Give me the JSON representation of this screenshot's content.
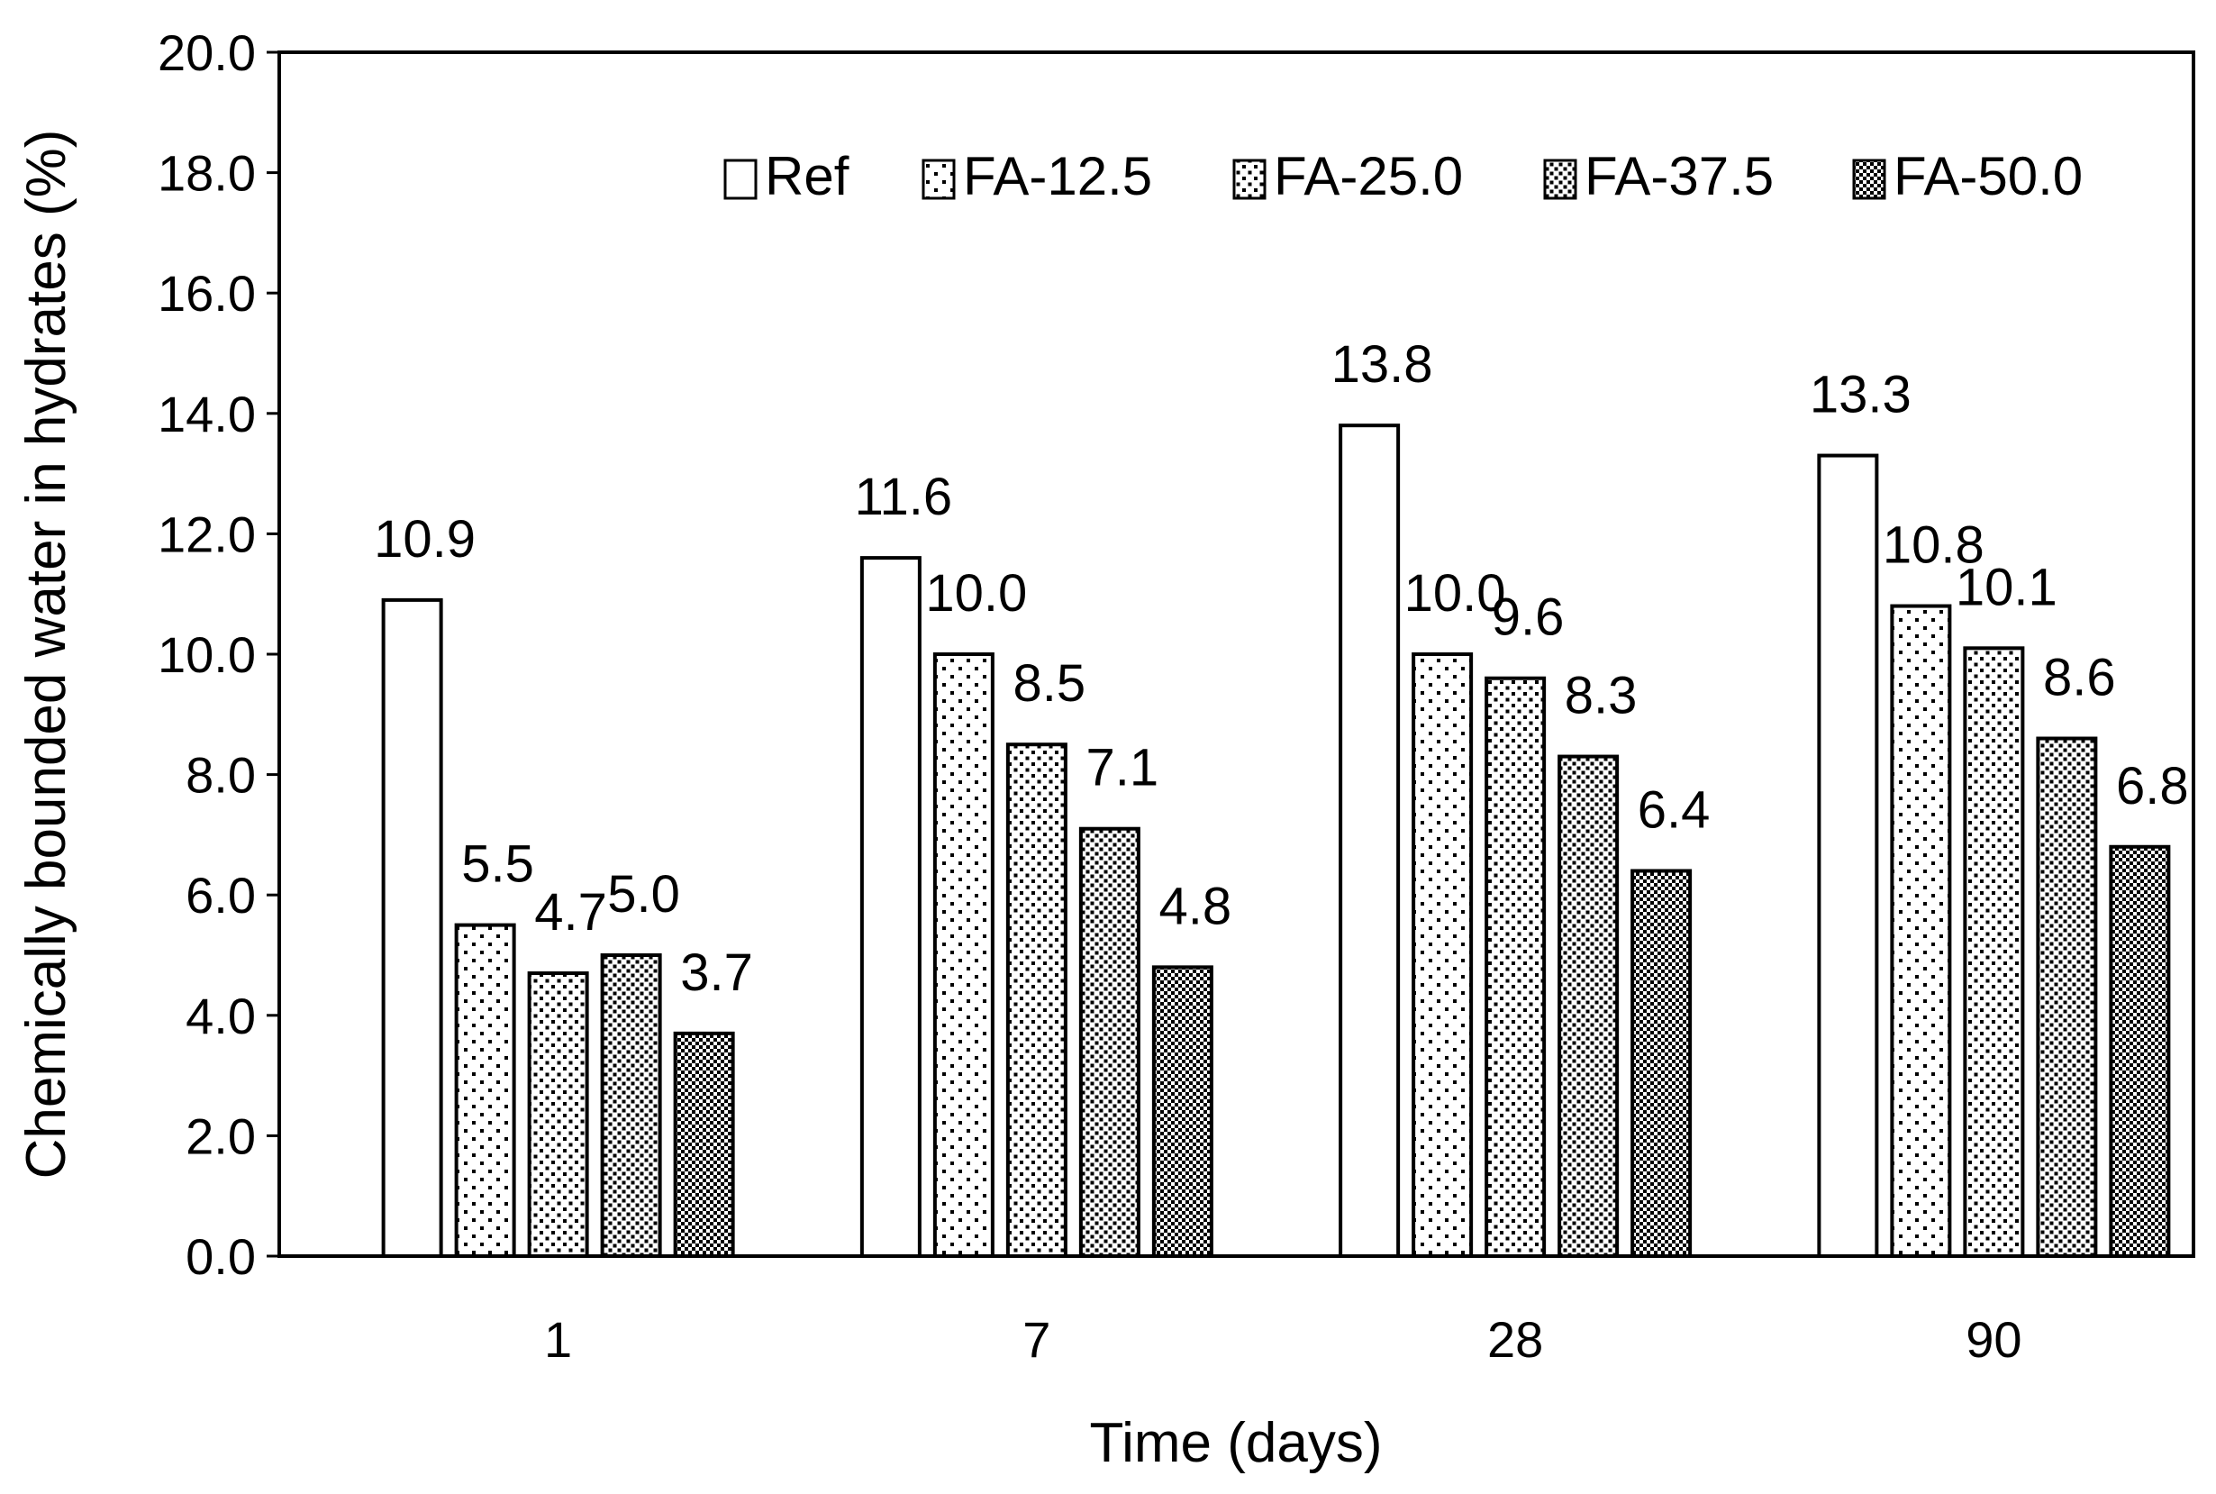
{
  "chart_data": {
    "type": "bar",
    "title": "",
    "xlabel": "Time (days)",
    "ylabel": "Chemically bounded water in hydrates (%)",
    "ylim": [
      0,
      20
    ],
    "ytick_step": 2,
    "ytick_labels": [
      "0.0",
      "2.0",
      "4.0",
      "6.0",
      "8.0",
      "10.0",
      "12.0",
      "14.0",
      "16.0",
      "18.0",
      "20.0"
    ],
    "categories": [
      "1",
      "7",
      "28",
      "90"
    ],
    "grid": false,
    "legend_position": "top-right",
    "series": [
      {
        "name": "Ref",
        "pattern": "blank",
        "values": [
          10.9,
          11.6,
          13.8,
          13.3
        ],
        "labels": [
          "10.9",
          "11.6",
          "13.8",
          "13.3"
        ]
      },
      {
        "name": "FA-12.5",
        "pattern": "dots-sparse",
        "values": [
          5.5,
          10.0,
          10.0,
          10.8
        ],
        "labels": [
          "5.5",
          "10.0",
          "10.0",
          "10.8"
        ]
      },
      {
        "name": "FA-25.0",
        "pattern": "dots-medium",
        "values": [
          4.7,
          8.5,
          9.6,
          10.1
        ],
        "labels": [
          "4.7",
          "8.5",
          "9.6",
          "10.1"
        ]
      },
      {
        "name": "FA-37.5",
        "pattern": "dots-dense",
        "values": [
          5.0,
          7.1,
          8.3,
          8.6
        ],
        "labels": [
          "5.0",
          "7.1",
          "8.3",
          "8.6"
        ]
      },
      {
        "name": "FA-50.0",
        "pattern": "checker",
        "values": [
          3.7,
          4.8,
          6.4,
          6.8
        ],
        "labels": [
          "3.7",
          "4.8",
          "6.4",
          "6.8"
        ]
      }
    ],
    "colors": {
      "stroke": "#000000",
      "fill": "#ffffff"
    }
  }
}
